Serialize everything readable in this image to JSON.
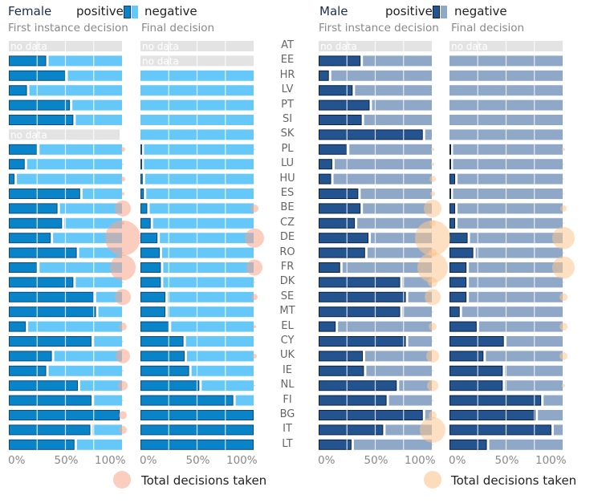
{
  "chart_data": {
    "type": "bar",
    "subtype": "stacked-horizontal-100-percent-with-bubbles",
    "countries": [
      "AT",
      "EE",
      "HR",
      "LV",
      "PT",
      "SI",
      "SK",
      "PL",
      "LU",
      "HU",
      "ES",
      "BE",
      "CZ",
      "DE",
      "RO",
      "FR",
      "DK",
      "SE",
      "MT",
      "EL",
      "CY",
      "UK",
      "IE",
      "NL",
      "FI",
      "BG",
      "IT",
      "LT"
    ],
    "legend": {
      "positive": "positive",
      "negative": "negative",
      "bubble": "Total decisions taken"
    },
    "no_data_label": "no data",
    "x_ticks": [
      "0%",
      "50%",
      "100%"
    ],
    "xlim": [
      0,
      100
    ],
    "panels": [
      {
        "group": "Female",
        "subtitle": "First instance decision",
        "colors": {
          "positive": "#0a84c8",
          "negative": "#66c8f8",
          "bubble": "#f5a48a",
          "no_data": "#e3e3e3"
        },
        "positive_pct": [
          null,
          33,
          50,
          16,
          54,
          57,
          null,
          25,
          14,
          5,
          63,
          43,
          47,
          37,
          60,
          25,
          57,
          75,
          77,
          15,
          73,
          38,
          33,
          61,
          73,
          98,
          72,
          58
        ],
        "total_decisions_rel": [
          0,
          0,
          0,
          0,
          0,
          0,
          0,
          3,
          1,
          3,
          2,
          10,
          2,
          22,
          1,
          16,
          1,
          10,
          0,
          5,
          1,
          9,
          1,
          6,
          1,
          5,
          5,
          0
        ]
      },
      {
        "group": "Female",
        "subtitle": "Final decision",
        "colors": {
          "positive": "#0a84c8",
          "negative": "#66c8f8",
          "bubble": "#f5a48a",
          "no_data": "#e3e3e3"
        },
        "positive_pct": [
          null,
          null,
          0,
          0,
          0,
          0,
          0,
          1,
          1,
          2,
          3,
          6,
          9,
          15,
          17,
          18,
          18,
          22,
          22,
          25,
          38,
          39,
          43,
          52,
          82,
          100,
          100,
          100
        ],
        "total_decisions_rel": [
          0,
          0,
          0,
          0,
          0,
          0,
          0,
          1,
          0,
          0,
          0,
          5,
          0,
          12,
          0,
          10,
          1,
          4,
          0,
          2,
          0,
          3,
          0,
          1,
          0,
          0,
          0,
          0
        ]
      },
      {
        "group": "Male",
        "subtitle": "First instance decision",
        "colors": {
          "positive": "#24548f",
          "negative": "#8fa8c8",
          "bubble": "#fcc590",
          "no_data": "#e3e3e3"
        },
        "positive_pct": [
          null,
          37,
          9,
          30,
          45,
          38,
          92,
          25,
          12,
          11,
          35,
          37,
          32,
          44,
          41,
          19,
          72,
          77,
          72,
          15,
          77,
          39,
          40,
          69,
          60,
          92,
          57,
          29
        ],
        "total_decisions_rel": [
          0,
          0,
          0,
          0,
          0,
          0,
          0,
          2,
          2,
          4,
          3,
          11,
          4,
          22,
          5,
          19,
          6,
          10,
          1,
          5,
          1,
          8,
          1,
          7,
          1,
          5,
          16,
          1
        ]
      },
      {
        "group": "Male",
        "subtitle": "Final decision",
        "colors": {
          "positive": "#24548f",
          "negative": "#8fa8c8",
          "bubble": "#fcc590",
          "no_data": "#e3e3e3"
        },
        "positive_pct": [
          null,
          0,
          0,
          0,
          0,
          0,
          0,
          1,
          1,
          5,
          1,
          5,
          5,
          16,
          21,
          15,
          15,
          15,
          9,
          24,
          48,
          30,
          47,
          47,
          81,
          76,
          90,
          33
        ],
        "total_decisions_rel": [
          0,
          0,
          0,
          0,
          0,
          0,
          0,
          2,
          1,
          1,
          1,
          4,
          1,
          14,
          1,
          14,
          1,
          5,
          0,
          5,
          0,
          5,
          0,
          2,
          0,
          0,
          0,
          0
        ]
      }
    ]
  },
  "header": {
    "female_title": "Female",
    "male_title": "Male",
    "positive_label": "positive",
    "negative_label": "negative"
  }
}
